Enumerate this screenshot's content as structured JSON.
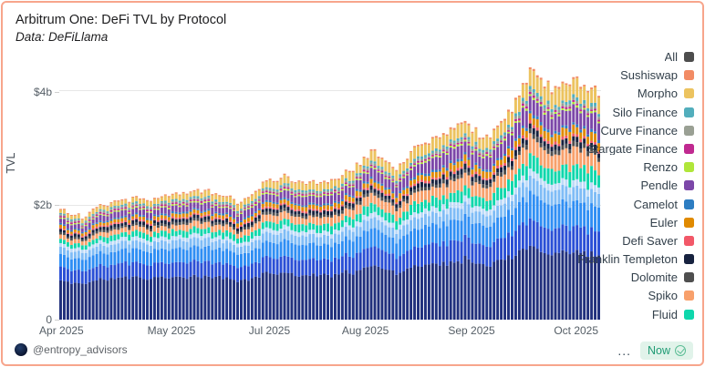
{
  "window": {
    "border_color": "#f7a58c",
    "background": "#ffffff"
  },
  "header": {
    "title": "Arbitrum One: DeFi TVL by Protocol",
    "subtitle": "Data: DeFiLlama"
  },
  "legend": {
    "items": [
      {
        "label": "All",
        "color": "#4d4d4d"
      },
      {
        "label": "Sushiswap",
        "color": "#f28b64"
      },
      {
        "label": "Morpho",
        "color": "#ecc35f"
      },
      {
        "label": "Silo Finance",
        "color": "#52aebc"
      },
      {
        "label": "Curve Finance",
        "color": "#9aa094"
      },
      {
        "label": "Stargate Finance",
        "color": "#c02990"
      },
      {
        "label": "Renzo",
        "color": "#b0e63a"
      },
      {
        "label": "Pendle",
        "color": "#7c47a8"
      },
      {
        "label": "Camelot",
        "color": "#2d7dc2"
      },
      {
        "label": "Euler",
        "color": "#e08a00"
      },
      {
        "label": "Defi Saver",
        "color": "#f25868"
      },
      {
        "label": "Franklin Templeton",
        "color": "#17223f"
      },
      {
        "label": "Dolomite",
        "color": "#4f4f4f"
      },
      {
        "label": "Spiko",
        "color": "#f8a06b"
      },
      {
        "label": "Fluid",
        "color": "#0fd7ac"
      }
    ]
  },
  "chart_data": {
    "type": "bar",
    "stacked": true,
    "title": "Arbitrum One: DeFi TVL by Protocol",
    "ylabel": "TVL",
    "ylim": [
      0,
      4.57
    ],
    "grid": true,
    "grid_color": "#e7e7e7",
    "legend_position": "right",
    "yticks": [
      {
        "label": "$4b",
        "value": 4
      },
      {
        "label": "$2b",
        "value": 2
      },
      {
        "label": "0",
        "value": 0
      }
    ],
    "xticks": [
      {
        "label": "Apr 2025",
        "pos": 0.004
      },
      {
        "label": "May 2025",
        "pos": 0.207
      },
      {
        "label": "Jul 2025",
        "pos": 0.388
      },
      {
        "label": "Aug 2025",
        "pos": 0.565
      },
      {
        "label": "Sep 2025",
        "pos": 0.761
      },
      {
        "label": "Oct 2025",
        "pos": 0.954
      }
    ],
    "bars": 150,
    "totals_billions": [
      1.92,
      1.8,
      2.02,
      2.1,
      2.12,
      2.15,
      2.28,
      2.2,
      2.05,
      2.35,
      2.5,
      2.4,
      2.45,
      2.6,
      2.95,
      2.65,
      3.05,
      3.2,
      3.45,
      3.15,
      3.6,
      4.4,
      4.0,
      4.15,
      3.95
    ],
    "series": [
      {
        "name": "unlabeled-1",
        "color": "#21307d",
        "share_start": 38.0,
        "share_end": 30.0
      },
      {
        "name": "unlabeled-2",
        "color": "#2a4fd6",
        "share_start": 13.0,
        "share_end": 11.0
      },
      {
        "name": "unlabeled-3",
        "color": "#2f8ef4",
        "share_start": 12.0,
        "share_end": 11.0
      },
      {
        "name": "unlabeled-4",
        "color": "#7fbcf6",
        "share_start": 7.0,
        "share_end": 6.5
      },
      {
        "name": "unlabeled-5",
        "color": "#bedaf8",
        "share_start": 3.5,
        "share_end": 3.0
      },
      {
        "name": "Fluid",
        "color": "#0fd7ac",
        "share_start": 4.5,
        "share_end": 6.5
      },
      {
        "name": "Spiko",
        "color": "#f8a06b",
        "share_start": 4.0,
        "share_end": 7.5
      },
      {
        "name": "Dolomite",
        "color": "#4f4f4f",
        "share_start": 2.0,
        "share_end": 2.0
      },
      {
        "name": "Franklin Templeton",
        "color": "#17223f",
        "share_start": 3.0,
        "share_end": 2.5
      },
      {
        "name": "Defi Saver",
        "color": "#f25868",
        "share_start": 1.5,
        "share_end": 1.2
      },
      {
        "name": "Euler",
        "color": "#e08a00",
        "share_start": 2.5,
        "share_end": 3.5
      },
      {
        "name": "Camelot",
        "color": "#2d7dc2",
        "share_start": 1.5,
        "share_end": 1.2
      },
      {
        "name": "Pendle",
        "color": "#7c47a8",
        "share_start": 4.5,
        "share_end": 7.5
      },
      {
        "name": "Renzo",
        "color": "#b0e63a",
        "share_start": 1.2,
        "share_end": 0.8
      },
      {
        "name": "Stargate Finance",
        "color": "#c02990",
        "share_start": 1.5,
        "share_end": 0.8
      },
      {
        "name": "Curve Finance",
        "color": "#9aa094",
        "share_start": 1.5,
        "share_end": 1.2
      },
      {
        "name": "Silo Finance",
        "color": "#52aebc",
        "share_start": 1.3,
        "share_end": 1.5
      },
      {
        "name": "Morpho",
        "color": "#ecc35f",
        "share_start": 3.5,
        "share_end": 7.5
      },
      {
        "name": "Sushiswap",
        "color": "#f28b64",
        "share_start": 1.0,
        "share_end": 0.8
      }
    ]
  },
  "footer": {
    "handle": "@entropy_advisors",
    "menu_label": "...",
    "now_label": "Now"
  }
}
